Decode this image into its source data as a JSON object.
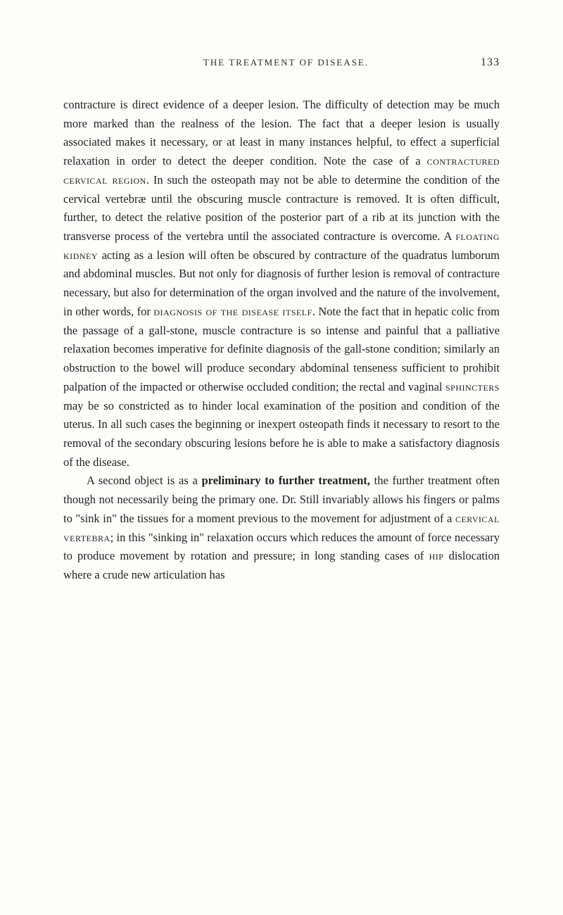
{
  "header": {
    "title": "THE TREATMENT OF DISEASE.",
    "page_number": "133"
  },
  "paragraphs": [
    {
      "segments": [
        {
          "text": "contracture is direct evidence of a deeper lesion. The difficulty of detection may be much more marked than the realness of the lesion. The fact that a deeper lesion is usually associated makes it necessary, or at least in many instances helpful, to effect a superficial relaxation in order to detect the deeper condition. Note the case of a ",
          "class": ""
        },
        {
          "text": "contractured cervical region",
          "class": "smallcaps"
        },
        {
          "text": ". In such the osteopath may not be able to determine the condition of the cervical vertebræ until the obscuring muscle contracture is removed. It is often difficult, further, to detect the relative position of the posterior part of a rib at its junction with the transverse process of the vertebra until the associated contracture is overcome. A ",
          "class": ""
        },
        {
          "text": "floating kidney",
          "class": "smallcaps"
        },
        {
          "text": " acting as a lesion will often be obscured by contracture of the quadratus lumborum and abdominal muscles. But not only for diagnosis of further lesion is removal of contracture necessary, but also for determination of the organ involved and the nature of the involvement, in other words, for ",
          "class": ""
        },
        {
          "text": "diagnosis of the disease itself",
          "class": "smallcaps"
        },
        {
          "text": ". Note the fact that in hepatic colic from the passage of a gall-stone, muscle contracture is so intense and painful that a palliative relaxation becomes imperative for definite diagnosis of the gall-stone condition; similarly an obstruction to the bowel will produce secondary abdominal tenseness sufficient to prohibit palpation of the impacted or otherwise occluded condition; the rectal and vaginal ",
          "class": ""
        },
        {
          "text": "sphincters",
          "class": "smallcaps"
        },
        {
          "text": " may be so constricted as to hinder local examination of the position and condition of the uterus. In all such cases the beginning or inexpert osteopath finds it necessary to resort to the removal of the secondary obscuring lesions before he is able to make a satisfactory diagnosis of the disease.",
          "class": ""
        }
      ]
    },
    {
      "segments": [
        {
          "text": "A second object is as a ",
          "class": ""
        },
        {
          "text": "preliminary to further treatment,",
          "class": "bold"
        },
        {
          "text": " the further treatment often though not necessarily being the primary one. Dr. Still invariably allows his fingers or palms to \"sink in\" the tissues for a moment previous to the movement for adjustment of a ",
          "class": ""
        },
        {
          "text": "cervical vertebra",
          "class": "smallcaps"
        },
        {
          "text": "; in this \"sinking in\" relaxation occurs which reduces the amount of force necessary to produce movement by rotation and pressure; in long standing cases of ",
          "class": ""
        },
        {
          "text": "hip",
          "class": "smallcaps"
        },
        {
          "text": " dislocation where a crude new articulation has",
          "class": ""
        }
      ]
    }
  ],
  "colors": {
    "background": "#fdfdf9",
    "text": "#222222",
    "header_text": "#2a2a2a"
  },
  "typography": {
    "body_fontsize": 16.5,
    "body_lineheight": 1.62,
    "header_fontsize": 13,
    "header_letterspacing": 2,
    "pagenum_fontsize": 16
  }
}
